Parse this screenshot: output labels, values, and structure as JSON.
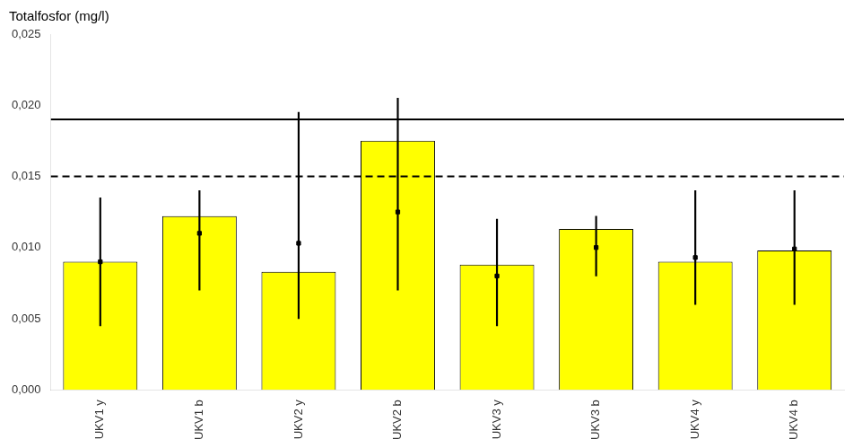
{
  "chart_data": {
    "type": "bar",
    "title": "Totalfosfor (mg/l)",
    "categories": [
      "UKV1 y",
      "UKV1 b",
      "UKV2 y",
      "UKV2 b",
      "UKV3 y",
      "UKV3 b",
      "UKV4 y",
      "UKV4 b"
    ],
    "values": [
      0.009,
      0.0122,
      0.0083,
      0.0175,
      0.0088,
      0.0113,
      0.009,
      0.0098
    ],
    "color": "#FFFF00",
    "error_low": [
      0.0045,
      0.007,
      0.005,
      0.007,
      0.0045,
      0.008,
      0.006,
      0.006
    ],
    "error_high": [
      0.0135,
      0.014,
      0.0195,
      0.0205,
      0.012,
      0.0122,
      0.014,
      0.014
    ],
    "dot_values": [
      0.009,
      0.011,
      0.0103,
      0.0125,
      0.008,
      0.01,
      0.0093,
      0.0099
    ],
    "reference_lines": [
      {
        "value": 0.019,
        "line_style": "solid"
      },
      {
        "value": 0.015,
        "line_style": "dashed"
      }
    ],
    "ylim": [
      0,
      0.025
    ],
    "yticks": [
      {
        "value": 0.0,
        "label": "0,000"
      },
      {
        "value": 0.005,
        "label": "0,005"
      },
      {
        "value": 0.01,
        "label": "0,010"
      },
      {
        "value": 0.015,
        "label": "0,015"
      },
      {
        "value": 0.02,
        "label": "0,020"
      },
      {
        "value": 0.025,
        "label": "0,025"
      }
    ],
    "grid": false
  }
}
